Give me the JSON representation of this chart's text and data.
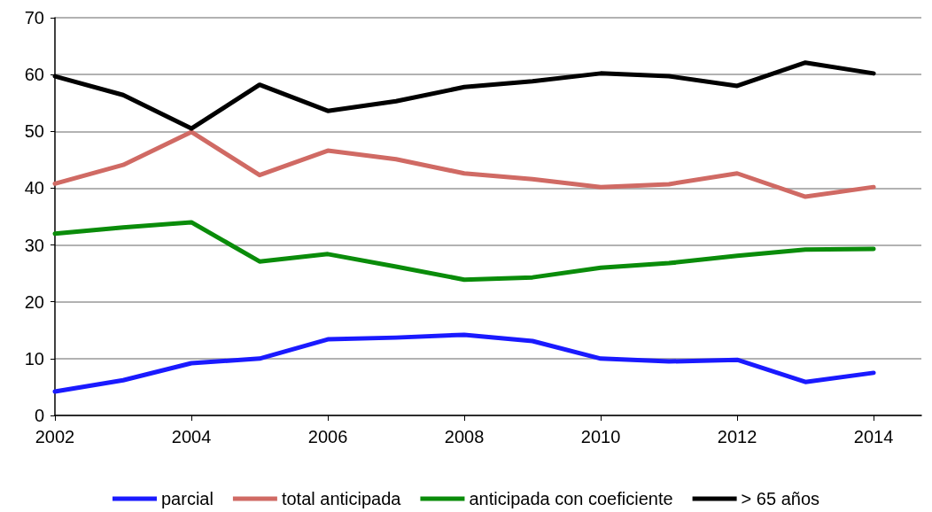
{
  "chart_data": {
    "type": "line",
    "x": [
      2002,
      2003,
      2004,
      2005,
      2006,
      2007,
      2008,
      2009,
      2010,
      2011,
      2012,
      2013,
      2014
    ],
    "series": [
      {
        "name": "parcial",
        "color": "#1a1aff",
        "values": [
          4.2,
          6.2,
          9.2,
          10,
          13.4,
          13.7,
          14.2,
          13.1,
          10,
          9.5,
          9.8,
          5.9,
          7.5
        ]
      },
      {
        "name": "total anticipada",
        "color": "#d06a64",
        "values": [
          40.8,
          44.1,
          49.9,
          42.3,
          46.6,
          45.1,
          42.6,
          41.6,
          40.2,
          40.7,
          42.6,
          38.5,
          40.2
        ]
      },
      {
        "name": "anticipada con coeficiente",
        "color": "#0a8c0a",
        "values": [
          32,
          33.1,
          34,
          27.1,
          28.4,
          26.2,
          23.9,
          24.3,
          26,
          26.8,
          28.1,
          29.2,
          29.3
        ]
      },
      {
        "name": "> 65 años",
        "color": "#000000",
        "values": [
          59.7,
          56.4,
          50.5,
          58.2,
          53.6,
          55.3,
          57.8,
          58.8,
          60.2,
          59.7,
          58,
          62.1,
          60.2
        ]
      }
    ],
    "xlim": [
      2002,
      2014.7
    ],
    "xticks": [
      2002,
      2004,
      2006,
      2008,
      2010,
      2012,
      2014
    ],
    "ylim": [
      0,
      70
    ],
    "yticks": [
      0,
      10,
      20,
      30,
      40,
      50,
      60,
      70
    ],
    "grid": "y",
    "legend": "bottom",
    "marker": "none",
    "line_style": "solid"
  }
}
